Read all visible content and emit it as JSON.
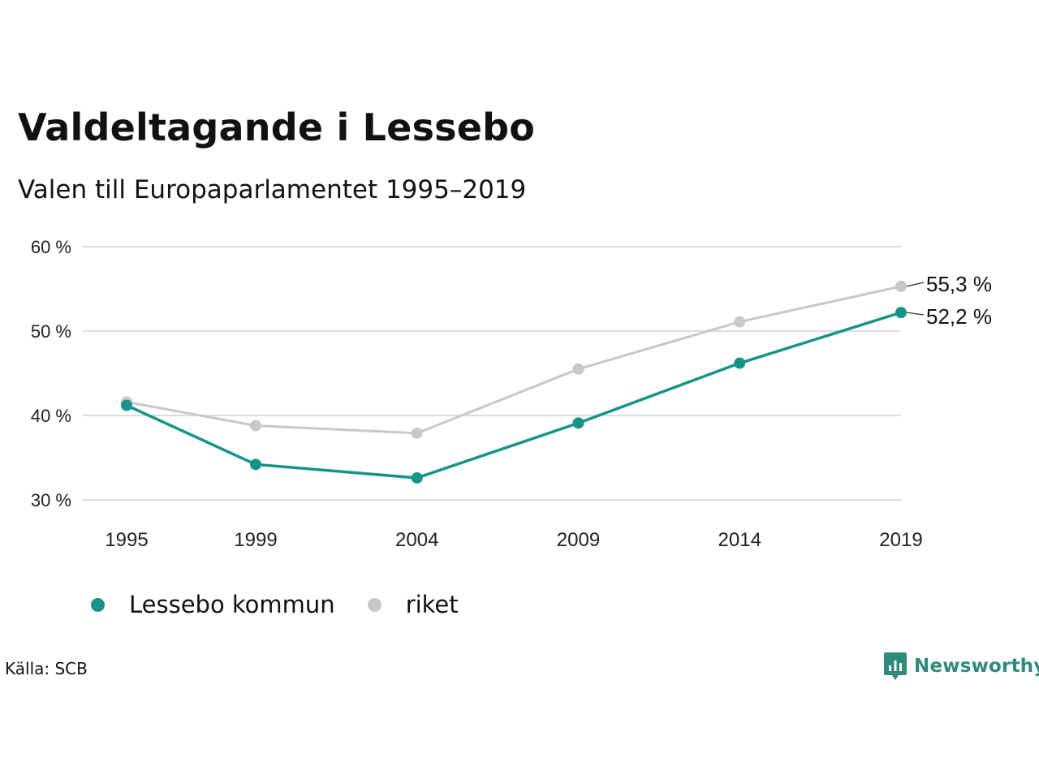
{
  "title": "Valdeltagande i Lessebo",
  "subtitle": "Valen till Europaparlamentet 1995–2019",
  "source": "Källa: SCB",
  "brand": "Newsworthy",
  "legend": {
    "series1": "Lessebo kommun",
    "series2": "riket"
  },
  "colors": {
    "lessebo": "#16948a",
    "riket": "#c8c8c8",
    "grid": "#dddddd",
    "brand": "#2e8b7a"
  },
  "chart_data": {
    "type": "line",
    "x": [
      "1995",
      "1999",
      "2004",
      "2009",
      "2014",
      "2019"
    ],
    "x_values": [
      1995,
      1999,
      2004,
      2009,
      2014,
      2019
    ],
    "ylim": [
      30,
      60
    ],
    "yticks": [
      "30 %",
      "40 %",
      "50 %",
      "60 %"
    ],
    "ytick_values": [
      30,
      40,
      50,
      60
    ],
    "grid": true,
    "legend_position": "bottom-left",
    "series": [
      {
        "name": "Lessebo kommun",
        "values": [
          41.2,
          34.2,
          32.6,
          39.1,
          46.2,
          52.2
        ],
        "end_label": "52,2 %"
      },
      {
        "name": "riket",
        "values": [
          41.6,
          38.8,
          37.9,
          45.5,
          51.1,
          55.3
        ],
        "end_label": "55,3 %"
      }
    ]
  }
}
